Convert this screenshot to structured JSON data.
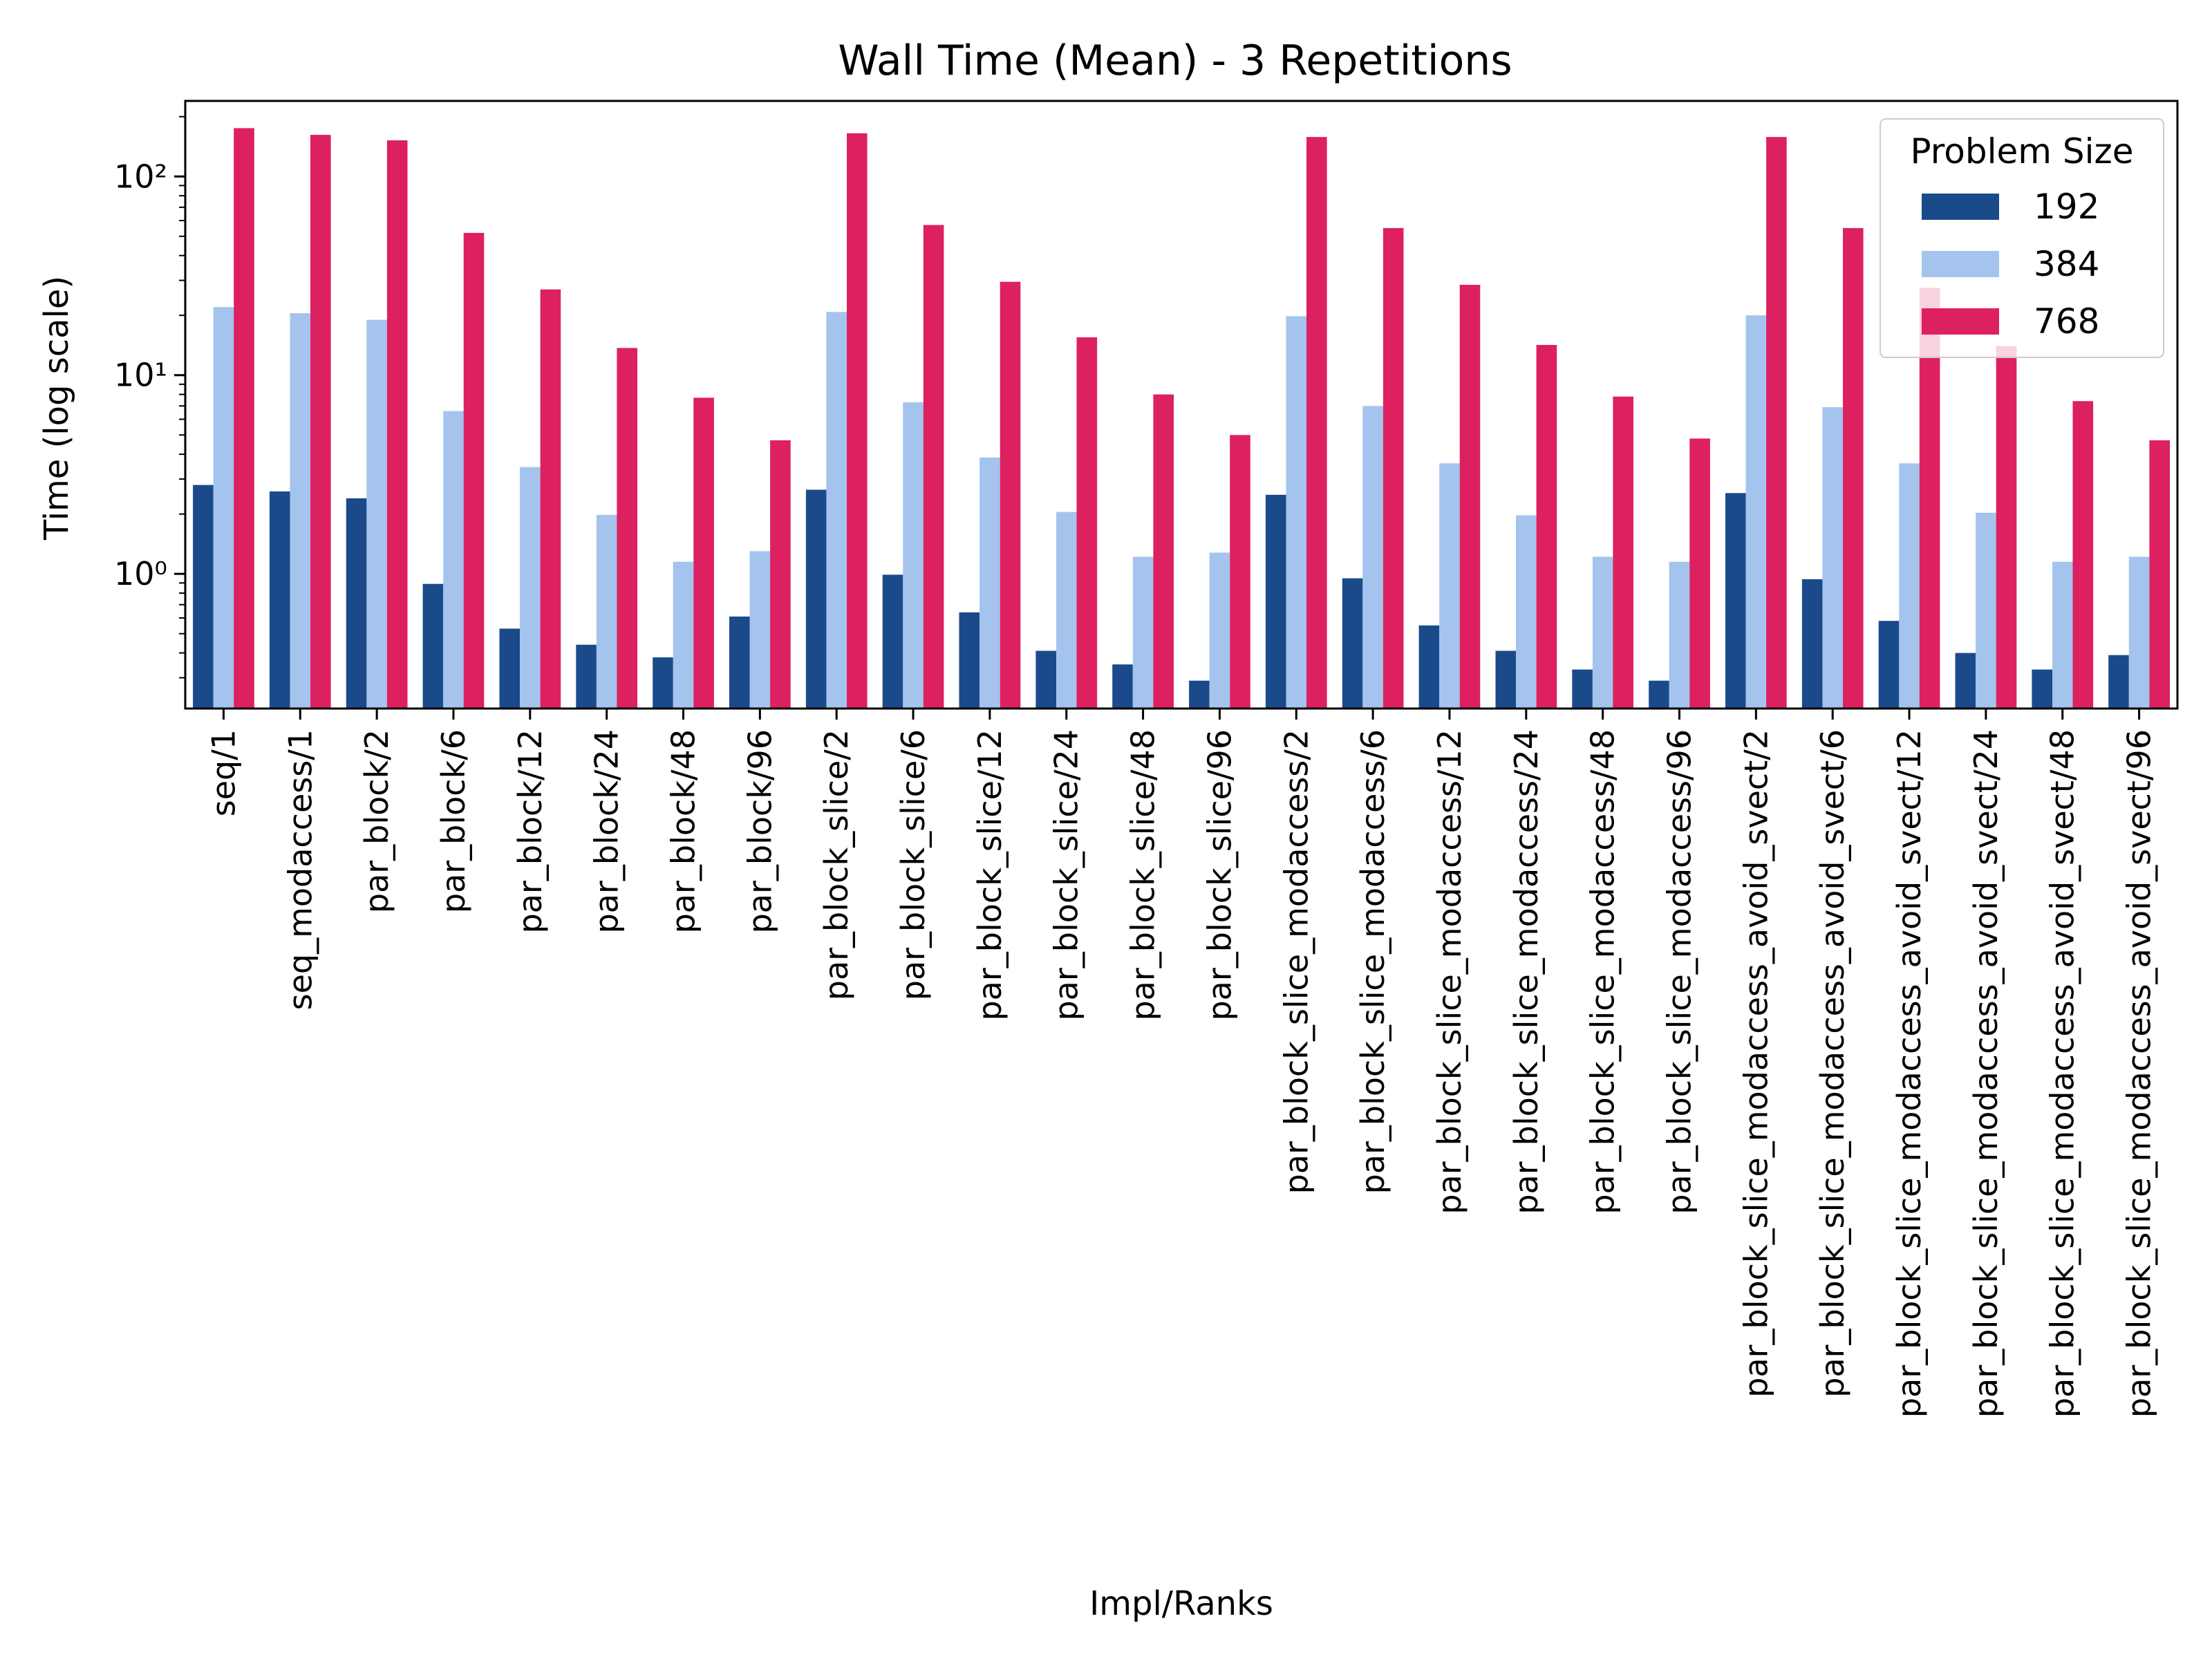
{
  "chart_data": {
    "type": "bar",
    "title": "Wall Time (Mean) - 3 Repetitions",
    "xlabel": "Impl/Ranks",
    "ylabel": "Time (log scale)",
    "yscale": "log",
    "ylim": [
      0.21,
      240
    ],
    "yticks": [
      {
        "value": 1,
        "label": "10⁰"
      },
      {
        "value": 10,
        "label": "10¹"
      },
      {
        "value": 100,
        "label": "10²"
      }
    ],
    "grid": false,
    "legend": {
      "title": "Problem Size",
      "placement": "top-right"
    },
    "categories": [
      "seq/1",
      "seq_modaccess/1",
      "par_block/2",
      "par_block/6",
      "par_block/12",
      "par_block/24",
      "par_block/48",
      "par_block/96",
      "par_block_slice/2",
      "par_block_slice/6",
      "par_block_slice/12",
      "par_block_slice/24",
      "par_block_slice/48",
      "par_block_slice/96",
      "par_block_slice_modaccess/2",
      "par_block_slice_modaccess/6",
      "par_block_slice_modaccess/12",
      "par_block_slice_modaccess/24",
      "par_block_slice_modaccess/48",
      "par_block_slice_modaccess/96",
      "par_block_slice_modaccess_avoid_svect/2",
      "par_block_slice_modaccess_avoid_svect/6",
      "par_block_slice_modaccess_avoid_svect/12",
      "par_block_slice_modaccess_avoid_svect/24",
      "par_block_slice_modaccess_avoid_svect/48",
      "par_block_slice_modaccess_avoid_svect/96"
    ],
    "series": [
      {
        "name": "192",
        "color": "#1a4a8a",
        "values": [
          2.8,
          2.6,
          2.4,
          0.89,
          0.53,
          0.44,
          0.38,
          0.61,
          2.65,
          0.99,
          0.64,
          0.41,
          0.35,
          0.29,
          2.5,
          0.95,
          0.55,
          0.41,
          0.33,
          0.29,
          2.55,
          0.94,
          0.58,
          0.4,
          0.33,
          0.39
        ]
      },
      {
        "name": "384",
        "color": "#a4c4ee",
        "values": [
          22,
          20.5,
          19,
          6.6,
          3.45,
          1.98,
          1.15,
          1.3,
          20.8,
          7.3,
          3.85,
          2.05,
          1.22,
          1.28,
          19.8,
          7.0,
          3.6,
          1.97,
          1.22,
          1.15,
          20,
          6.9,
          3.6,
          2.03,
          1.15,
          1.22
        ]
      },
      {
        "name": "768",
        "color": "#dd2060",
        "values": [
          175,
          162,
          152,
          52,
          27,
          13.7,
          7.7,
          4.7,
          165,
          57,
          29.5,
          15.5,
          8.0,
          5.0,
          158,
          55,
          28.5,
          14.2,
          7.8,
          4.8,
          158,
          55,
          27.5,
          14.0,
          7.4,
          4.7
        ]
      }
    ]
  }
}
